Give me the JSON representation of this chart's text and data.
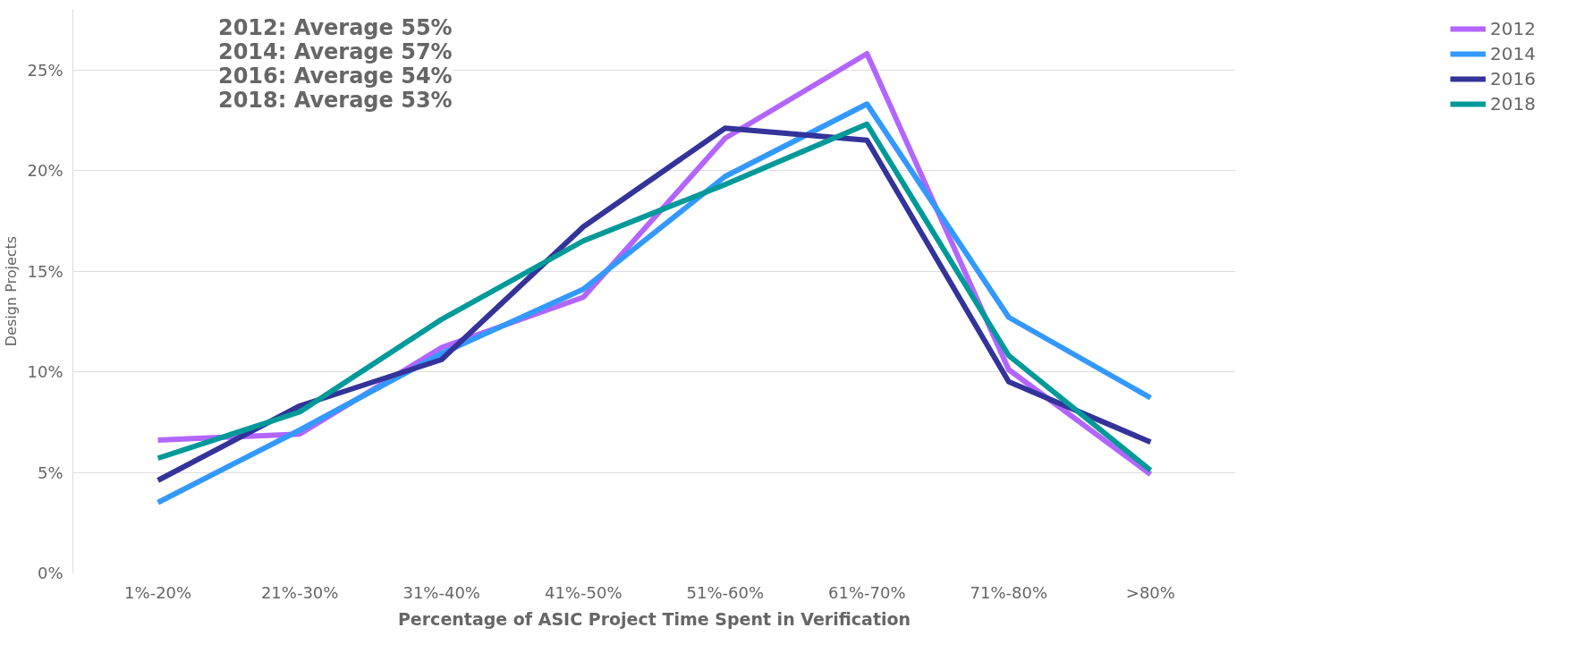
{
  "chart_data": {
    "type": "line",
    "xlabel": "Percentage of ASIC Project Time Spent in Verification",
    "ylabel": "Design Projects",
    "categories": [
      "1%-20%",
      "21%-30%",
      "31%-40%",
      "41%-50%",
      "51%-60%",
      "61%-70%",
      "71%-80%",
      ">80%"
    ],
    "series": [
      {
        "name": "2012",
        "color": "#b266ff",
        "values": [
          6.6,
          6.9,
          11.2,
          13.7,
          21.6,
          25.8,
          10.1,
          4.9
        ]
      },
      {
        "name": "2014",
        "color": "#3399ff",
        "values": [
          3.5,
          7.1,
          10.9,
          14.1,
          19.7,
          23.3,
          12.7,
          8.7
        ]
      },
      {
        "name": "2016",
        "color": "#333399",
        "values": [
          4.6,
          8.3,
          10.6,
          17.2,
          22.1,
          21.5,
          9.5,
          6.5
        ]
      },
      {
        "name": "2018",
        "color": "#009999",
        "values": [
          5.7,
          8.0,
          12.6,
          16.5,
          19.3,
          22.3,
          10.8,
          5.1
        ]
      }
    ],
    "ylim": [
      0,
      28
    ],
    "yticks": [
      {
        "value": 0,
        "label": "0%"
      },
      {
        "value": 5,
        "label": "5%"
      },
      {
        "value": 10,
        "label": "10%"
      },
      {
        "value": 15,
        "label": "15%"
      },
      {
        "value": 20,
        "label": "20%"
      },
      {
        "value": 25,
        "label": "25%"
      }
    ],
    "grid": "y",
    "legend": "top right",
    "marker": "none",
    "line_style": "solid",
    "annotations": [
      "2012: Average 55%",
      "2014: Average 57%",
      "2016: Average 54%",
      "2018: Average 53%"
    ]
  }
}
